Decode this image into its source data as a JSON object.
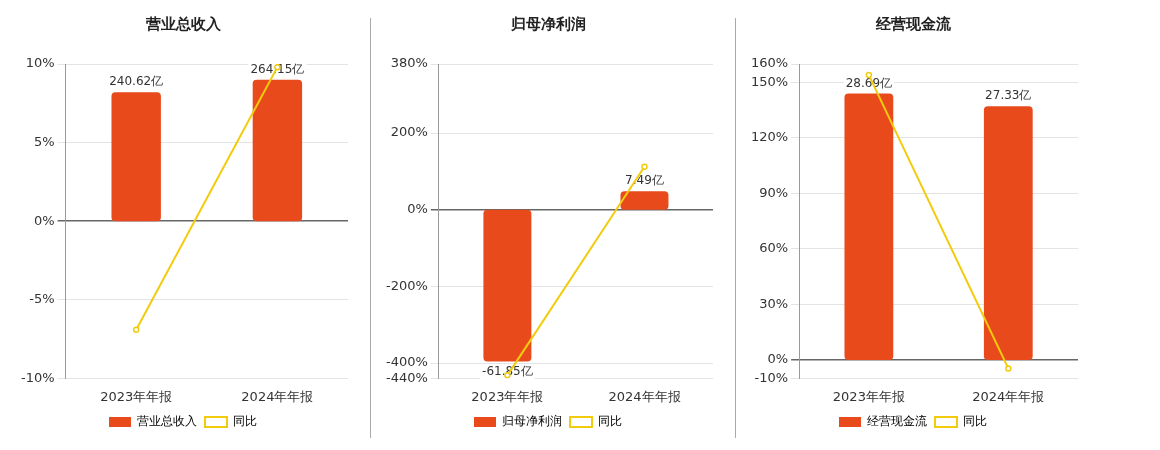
{
  "chart_data": [
    {
      "type": "bar",
      "title": "营业总收入",
      "categories": [
        "2023年年报",
        "2024年年报"
      ],
      "series": [
        {
          "name": "营业总收入",
          "axis": "y2",
          "color": "#e84a1c",
          "values": [
            240.62,
            264.15
          ],
          "value_labels": [
            "240.62亿",
            "264.15亿"
          ]
        },
        {
          "name": "同比",
          "type": "line",
          "color": "#f2cc0c",
          "values": [
            -6.9,
            9.8
          ]
        }
      ],
      "ylim": [
        -10,
        10
      ],
      "yticks": [
        {
          "value": -10,
          "label": "-10%"
        },
        {
          "value": -5,
          "label": "-5%"
        },
        {
          "value": 0,
          "label": "0%"
        },
        {
          "value": 5,
          "label": "5%"
        },
        {
          "value": 10,
          "label": "10%"
        }
      ],
      "grid": "y",
      "legend": "bottom",
      "marker": "circle"
    },
    {
      "type": "bar",
      "title": "归母净利润",
      "categories": [
        "2023年年报",
        "2024年年报"
      ],
      "series": [
        {
          "name": "归母净利润",
          "axis": "y2",
          "color": "#e84a1c",
          "values": [
            -61.85,
            7.49
          ],
          "value_labels": [
            "-61.85亿",
            "7.49亿"
          ]
        },
        {
          "name": "同比",
          "type": "line",
          "color": "#f2cc0c",
          "values": [
            -432,
            112
          ]
        }
      ],
      "ylim": [
        -440,
        380
      ],
      "yticks": [
        {
          "value": -440,
          "label": "-440%"
        },
        {
          "value": -400,
          "label": "-400%"
        },
        {
          "value": -200,
          "label": "-200%"
        },
        {
          "value": 0,
          "label": "0%"
        },
        {
          "value": 200,
          "label": "200%"
        },
        {
          "value": 380,
          "label": "380%"
        }
      ],
      "grid": "y",
      "legend": "bottom",
      "marker": "circle"
    },
    {
      "type": "bar",
      "title": "经营现金流",
      "categories": [
        "2023年年报",
        "2024年年报"
      ],
      "series": [
        {
          "name": "经营现金流",
          "axis": "y2",
          "color": "#e84a1c",
          "values": [
            28.69,
            27.33
          ],
          "value_labels": [
            "28.69亿",
            "27.33亿"
          ]
        },
        {
          "name": "同比",
          "type": "line",
          "color": "#f2cc0c",
          "values": [
            154,
            -4.6
          ]
        }
      ],
      "ylim": [
        -10,
        160
      ],
      "yticks": [
        {
          "value": -10,
          "label": "-10%"
        },
        {
          "value": 0,
          "label": "0%"
        },
        {
          "value": 30,
          "label": "30%"
        },
        {
          "value": 60,
          "label": "60%"
        },
        {
          "value": 90,
          "label": "90%"
        },
        {
          "value": 120,
          "label": "120%"
        },
        {
          "value": 150,
          "label": "150%"
        },
        {
          "value": 160,
          "label": "160%"
        }
      ],
      "grid": "y",
      "legend": "bottom",
      "marker": "circle"
    }
  ]
}
